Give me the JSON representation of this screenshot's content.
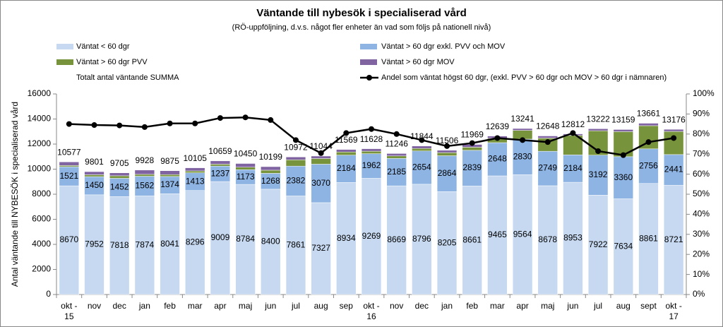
{
  "chart_data": {
    "type": "bar",
    "title": "Väntande till nybesök i specialiserad vård",
    "subtitle": "(RÖ-uppföljning, d.v.s. något fler enheter än vad som följs på nationell nivå)",
    "y_label": "Antal väntande till NYBESÖK i specialiserad vård",
    "categories": [
      "okt -\n15",
      "nov",
      "dec",
      "jan",
      "feb",
      "mar",
      "apr",
      "maj",
      "jun",
      "jul",
      "aug",
      "sep",
      "okt -\n16",
      "nov",
      "dec",
      "jan",
      "feb",
      "mar",
      "apr",
      "maj",
      "jun",
      "jul",
      "aug",
      "sept",
      "okt -\n17"
    ],
    "stacked": true,
    "grid": false,
    "ylim": [
      0,
      16000
    ],
    "yticks": [
      0,
      2000,
      4000,
      6000,
      8000,
      10000,
      12000,
      14000,
      16000
    ],
    "y2lim": [
      0,
      100
    ],
    "y2ticks": [
      {
        "value": 0,
        "label": "0%"
      },
      {
        "value": 10,
        "label": "10%"
      },
      {
        "value": 20,
        "label": "20%"
      },
      {
        "value": 30,
        "label": "30%"
      },
      {
        "value": 40,
        "label": "40%"
      },
      {
        "value": 50,
        "label": "50%"
      },
      {
        "value": 60,
        "label": "60%"
      },
      {
        "value": 70,
        "label": "70%"
      },
      {
        "value": 80,
        "label": "80%"
      },
      {
        "value": 90,
        "label": "90%"
      },
      {
        "value": 100,
        "label": "100%"
      }
    ],
    "series": [
      {
        "name": "Väntat < 60 dgr",
        "type": "bar",
        "color": "#c6d9f1",
        "data_labels": true,
        "values": [
          8670,
          7952,
          7818,
          7874,
          8041,
          8296,
          9009,
          8784,
          8400,
          7861,
          7327,
          8934,
          9269,
          8669,
          8796,
          8205,
          8661,
          9465,
          9564,
          8678,
          8953,
          7922,
          7634,
          8861,
          8721
        ]
      },
      {
        "name": "Väntat > 60 dgr exkl. PVV och MOV",
        "type": "bar",
        "color": "#8eb4e3",
        "data_labels": true,
        "values": [
          1521,
          1450,
          1452,
          1562,
          1374,
          1413,
          1237,
          1173,
          1268,
          2382,
          3070,
          2184,
          1962,
          2185,
          2654,
          2864,
          2839,
          2648,
          2830,
          2749,
          2184,
          3192,
          3360,
          2756,
          2441
        ]
      },
      {
        "name": "Väntat > 60 dgr PVV",
        "type": "bar",
        "color": "#77933c",
        "data_labels": false,
        "values": [
          100,
          150,
          200,
          150,
          150,
          150,
          150,
          200,
          250,
          500,
          450,
          250,
          200,
          200,
          200,
          250,
          250,
          350,
          700,
          1050,
          1550,
          1950,
          2000,
          1850,
          1850
        ]
      },
      {
        "name": "Väntat > 60 dgr MOV",
        "type": "bar",
        "color": "#8064a2",
        "data_labels": false,
        "values": [
          286,
          249,
          235,
          342,
          310,
          246,
          263,
          293,
          281,
          229,
          197,
          201,
          197,
          192,
          194,
          187,
          219,
          176,
          147,
          171,
          125,
          158,
          165,
          194,
          164
        ]
      },
      {
        "name": "Totalt antal väntande SUMMA",
        "type": "label",
        "data_labels": true,
        "values": [
          10577,
          9801,
          9705,
          9928,
          9875,
          10105,
          10659,
          10450,
          10199,
          10972,
          11044,
          11569,
          11628,
          11246,
          11844,
          11506,
          11969,
          12639,
          13241,
          12648,
          12812,
          13222,
          13159,
          13661,
          13176
        ]
      },
      {
        "name": "Andel som väntat högst 60 dgr, (exkl. PVV > 60 dgr och MOV > 60 dgr i nämnaren)",
        "type": "line",
        "axis": "y2",
        "color": "#000000",
        "data_labels": false,
        "values": [
          85,
          84.5,
          84.3,
          83.5,
          85.3,
          85.3,
          88,
          88.3,
          87,
          77,
          70.5,
          80.5,
          82.5,
          80,
          77,
          74,
          75.5,
          78,
          77,
          76,
          80.5,
          71.5,
          69.5,
          76,
          78
        ]
      }
    ]
  }
}
